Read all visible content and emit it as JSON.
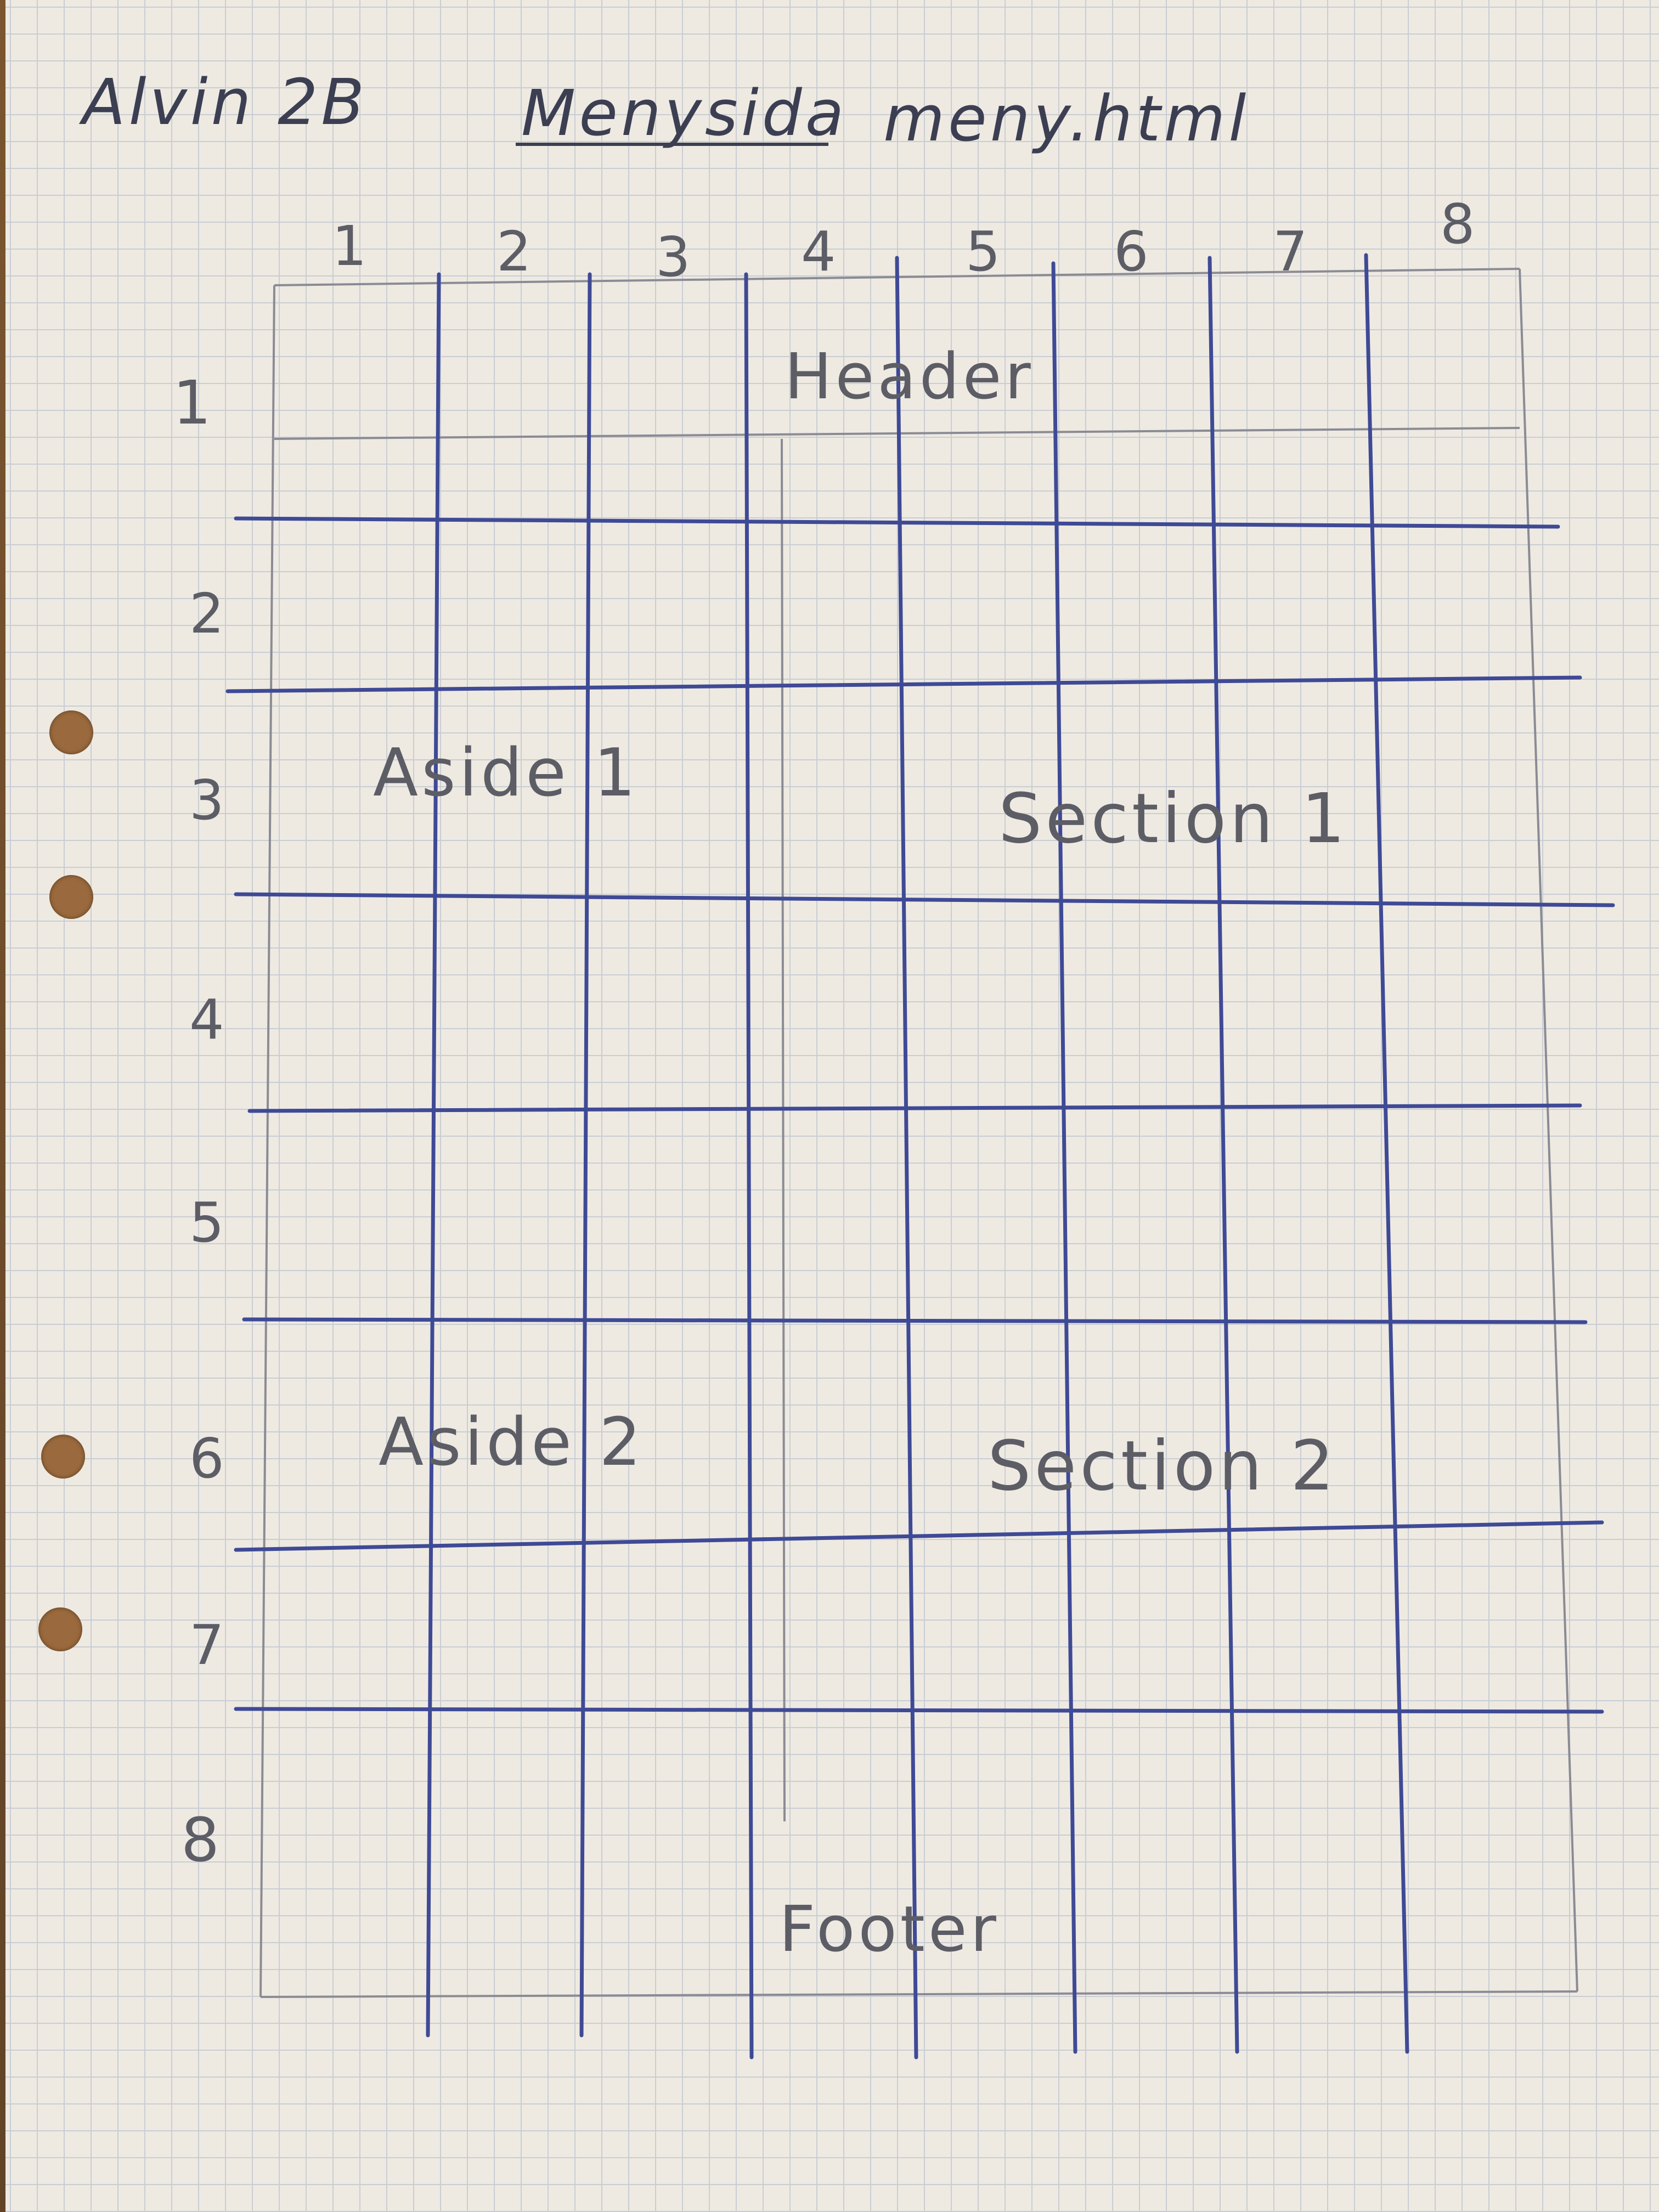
{
  "author": "Alvin 2B",
  "title": "Menysida",
  "filename": "meny.html",
  "column_numbers": [
    "1",
    "2",
    "3",
    "4",
    "5",
    "6",
    "7",
    "8"
  ],
  "row_numbers": [
    "1",
    "2",
    "3",
    "4",
    "5",
    "6",
    "7",
    "8"
  ],
  "areas": {
    "header": "Header",
    "aside1": "Aside 1",
    "section1": "Section 1",
    "aside2": "Aside 2",
    "section2": "Section 2",
    "footer": "Footer"
  },
  "colors": {
    "ink": "#3f4a96",
    "pencil": "#8b8b94",
    "paper": "#eeeae2"
  }
}
